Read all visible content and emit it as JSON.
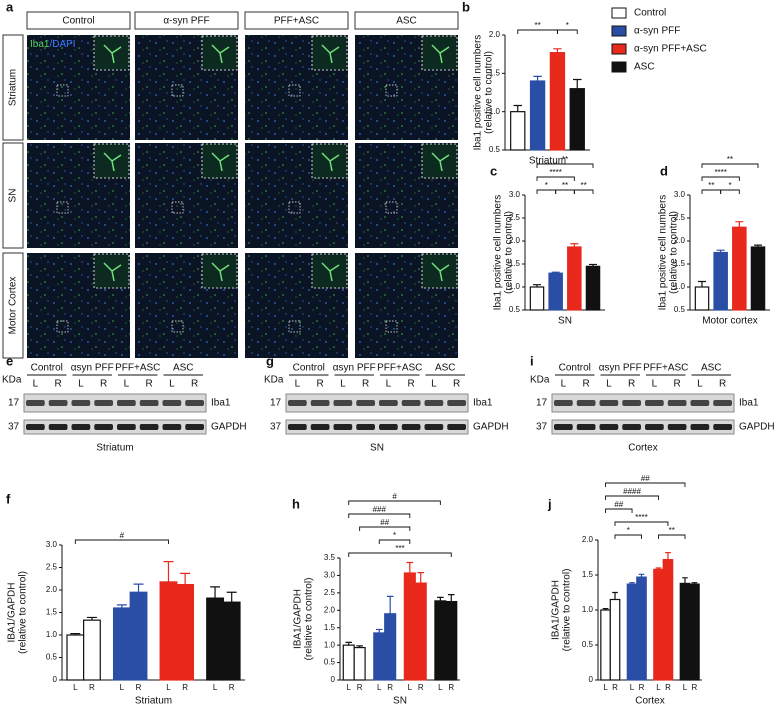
{
  "panel_labels": [
    "a",
    "b",
    "c",
    "d",
    "e",
    "f",
    "g",
    "h",
    "i",
    "j"
  ],
  "panel_a": {
    "stain": [
      "Iba1",
      "/DAPI"
    ],
    "columns": [
      "Control",
      "α-syn PFF",
      "PFF+ASC",
      "ASC"
    ],
    "rows": [
      "Striatum",
      "SN",
      "Motor Cortex"
    ]
  },
  "blots": [
    {
      "groups": [
        "Control",
        "αsyn PFF",
        "PFF+ASC",
        "ASC"
      ],
      "lanes": [
        "L",
        "R",
        "L",
        "R",
        "L",
        "R",
        "L",
        "R"
      ],
      "unit": "KDa",
      "markers": [
        17,
        37
      ],
      "bands": [
        "Iba1",
        "GAPDH"
      ],
      "tissue": "Striatum"
    },
    {
      "groups": [
        "Control",
        "αsyn PFF",
        "PFF+ASC",
        "ASC"
      ],
      "lanes": [
        "L",
        "R",
        "L",
        "R",
        "L",
        "R",
        "L",
        "R"
      ],
      "unit": "KDa",
      "markers": [
        17,
        37
      ],
      "bands": [
        "Iba1",
        "GAPDH"
      ],
      "tissue": "SN"
    },
    {
      "groups": [
        "Control",
        "αsyn PFF",
        "PFF+ASC",
        "ASC"
      ],
      "lanes": [
        "L",
        "R",
        "L",
        "R",
        "L",
        "R",
        "L",
        "R"
      ],
      "unit": "KDa",
      "markers": [
        17,
        37
      ],
      "bands": [
        "Iba1",
        "GAPDH"
      ],
      "tissue": "Cortex"
    }
  ],
  "chart_data": [
    {
      "type": "bar",
      "legend": [
        "Control",
        "α-syn PFF",
        "α-syn PFF+ASC",
        "ASC"
      ],
      "ylabel": [
        "Iba1 positive cell numbers",
        "(relative to control)"
      ],
      "xlabel": "Striatum",
      "values": [
        1.0,
        1.4,
        1.77,
        1.3
      ],
      "errors": [
        0.08,
        0.06,
        0.05,
        0.12
      ],
      "colors": [
        "#ffffff",
        "#2a4ea6",
        "#e8291c",
        "#111111"
      ],
      "ylim": [
        0.5,
        2.0
      ],
      "yticks": [
        0.5,
        {
          "value": 1,
          "label": "1.0"
        },
        1.5,
        {
          "value": 2,
          "label": "2.0"
        }
      ],
      "annotations": [
        {
          "text": "**",
          "groups": [
            0,
            2
          ]
        },
        {
          "text": "*",
          "groups": [
            2,
            3
          ]
        }
      ]
    },
    {
      "type": "bar",
      "ylabel": [
        "Iba1 positive cell numbers",
        "(relative to control)"
      ],
      "xlabel": "SN",
      "values": [
        1.0,
        1.3,
        1.87,
        1.45
      ],
      "errors": [
        0.05,
        0.02,
        0.07,
        0.04
      ],
      "colors": [
        "#ffffff",
        "#2a4ea6",
        "#e8291c",
        "#111111"
      ],
      "ylim": [
        0.5,
        3.0
      ],
      "yticks": [
        0.5,
        {
          "value": 1,
          "label": "1.0"
        },
        1.5,
        {
          "value": 2,
          "label": "2.0"
        },
        2.5,
        {
          "value": 3,
          "label": "3.0"
        }
      ],
      "annotations": [
        {
          "text": "*",
          "groups": [
            0,
            1
          ]
        },
        {
          "text": "**",
          "groups": [
            1,
            2
          ]
        },
        {
          "text": "**",
          "groups": [
            2,
            3
          ]
        },
        {
          "text": "****",
          "groups": [
            0,
            2
          ]
        },
        {
          "text": "**",
          "groups": [
            0,
            3
          ]
        }
      ]
    },
    {
      "type": "bar",
      "ylabel": [
        "Iba1 positive cell numbers",
        "(relative to control)"
      ],
      "xlabel": "Motor cortex",
      "values": [
        1.0,
        1.75,
        2.3,
        1.87
      ],
      "errors": [
        0.12,
        0.05,
        0.12,
        0.04
      ],
      "colors": [
        "#ffffff",
        "#2a4ea6",
        "#e8291c",
        "#111111"
      ],
      "ylim": [
        0.5,
        3.0
      ],
      "yticks": [
        0.5,
        {
          "value": 1,
          "label": "1.0"
        },
        1.5,
        {
          "value": 2,
          "label": "2.0"
        },
        2.5,
        {
          "value": 3,
          "label": "3.0"
        }
      ],
      "annotations": [
        {
          "text": "**",
          "groups": [
            0,
            1
          ]
        },
        {
          "text": "*",
          "groups": [
            1,
            2
          ]
        },
        {
          "text": "****",
          "groups": [
            0,
            2
          ]
        },
        {
          "text": "**",
          "groups": [
            0,
            3
          ]
        }
      ]
    },
    {
      "type": "bar",
      "ylabel": [
        "IBA1/GAPDH",
        "(relative to control)"
      ],
      "xlabel": "Striatum",
      "categories": [
        "L",
        "R",
        "L",
        "R",
        "L",
        "R",
        "L",
        "R"
      ],
      "values": [
        1.0,
        1.33,
        1.6,
        1.95,
        2.18,
        2.12,
        1.82,
        1.73
      ],
      "errors": [
        0.03,
        0.06,
        0.07,
        0.18,
        0.45,
        0.25,
        0.25,
        0.22
      ],
      "colors": [
        "#ffffff",
        "#ffffff",
        "#2a4ea6",
        "#2a4ea6",
        "#e8291c",
        "#e8291c",
        "#111111",
        "#111111"
      ],
      "ylim": [
        0,
        3.0
      ],
      "yticks": [
        0,
        0.5,
        {
          "value": 1,
          "label": "1.0"
        },
        1.5,
        {
          "value": 2,
          "label": "2.0"
        },
        2.5,
        {
          "value": 3,
          "label": "3.0"
        }
      ],
      "annotations": [
        {
          "text": "#",
          "groups": [
            0,
            4
          ]
        }
      ]
    },
    {
      "type": "bar",
      "ylabel": [
        "IBA1/GAPDH",
        "(relative to control)"
      ],
      "xlabel": "SN",
      "categories": [
        "L",
        "R",
        "L",
        "R",
        "L",
        "R",
        "L",
        "R"
      ],
      "values": [
        1.0,
        0.93,
        1.35,
        1.9,
        3.07,
        2.78,
        2.27,
        2.25
      ],
      "errors": [
        0.08,
        0.05,
        0.1,
        0.5,
        0.3,
        0.3,
        0.1,
        0.2
      ],
      "colors": [
        "#ffffff",
        "#ffffff",
        "#2a4ea6",
        "#2a4ea6",
        "#e8291c",
        "#e8291c",
        "#111111",
        "#111111"
      ],
      "ylim": [
        0,
        3.5
      ],
      "yticks": [
        0,
        0.5,
        {
          "value": 1,
          "label": "1.0"
        },
        1.5,
        {
          "value": 2,
          "label": "2.0"
        },
        2.5,
        {
          "value": 3,
          "label": "3.0"
        },
        3.5
      ],
      "annotations": [
        {
          "text": "***",
          "groups": [
            0,
            7
          ]
        },
        {
          "text": "*",
          "groups": [
            2,
            4
          ]
        },
        {
          "text": "##",
          "groups": [
            1,
            4
          ]
        },
        {
          "text": "###",
          "groups": [
            0,
            4
          ]
        },
        {
          "text": "#",
          "groups": [
            0,
            6
          ]
        }
      ]
    },
    {
      "type": "bar",
      "ylabel": [
        "IBA1/GAPDH",
        "(relative to control)"
      ],
      "xlabel": "Cortex",
      "categories": [
        "L",
        "R",
        "L",
        "R",
        "L",
        "R",
        "L",
        "R"
      ],
      "values": [
        1.0,
        1.15,
        1.37,
        1.47,
        1.58,
        1.72,
        1.38,
        1.37
      ],
      "errors": [
        0.02,
        0.1,
        0.02,
        0.04,
        0.02,
        0.1,
        0.08,
        0.02
      ],
      "colors": [
        "#ffffff",
        "#ffffff",
        "#2a4ea6",
        "#2a4ea6",
        "#e8291c",
        "#e8291c",
        "#111111",
        "#111111"
      ],
      "ylim": [
        0,
        2.0
      ],
      "yticks": [
        0,
        0.5,
        {
          "value": 1,
          "label": "1.0"
        },
        1.5,
        {
          "value": 2,
          "label": "2.0"
        }
      ],
      "annotations": [
        {
          "text": "*",
          "groups": [
            1,
            3
          ]
        },
        {
          "text": "**",
          "groups": [
            4,
            6
          ]
        },
        {
          "text": "****",
          "groups": [
            1,
            5
          ]
        },
        {
          "text": "##",
          "groups": [
            0,
            2
          ]
        },
        {
          "text": "####",
          "groups": [
            0,
            4
          ]
        },
        {
          "text": "##",
          "groups": [
            0,
            6
          ]
        }
      ]
    }
  ]
}
